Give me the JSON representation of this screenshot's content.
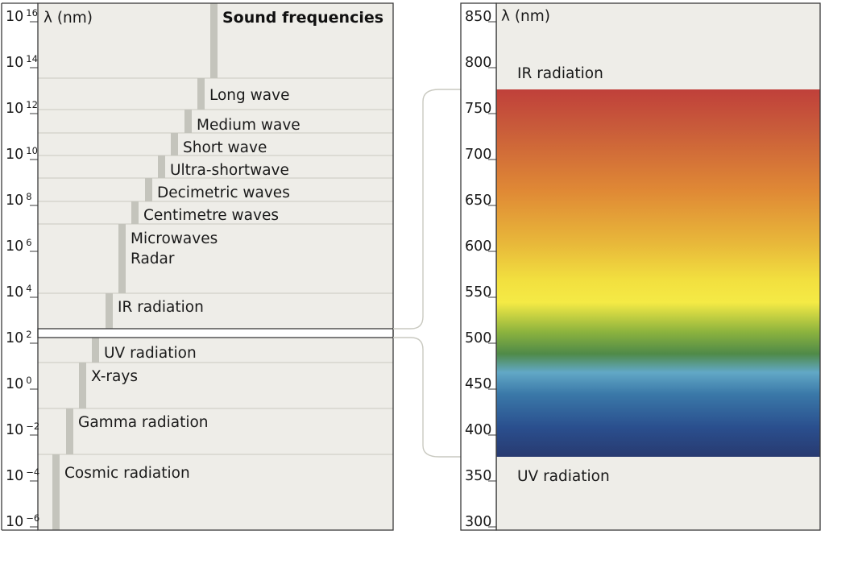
{
  "left_panel": {
    "unit_label": "λ (nm)",
    "heading": "Sound frequencies",
    "ticks": [
      {
        "base": "10",
        "exp": "16"
      },
      {
        "base": "10",
        "exp": "14"
      },
      {
        "base": "10",
        "exp": "12"
      },
      {
        "base": "10",
        "exp": "10"
      },
      {
        "base": "10",
        "exp": "8"
      },
      {
        "base": "10",
        "exp": "6"
      },
      {
        "base": "10",
        "exp": "4"
      },
      {
        "base": "10",
        "exp": "2"
      },
      {
        "base": "10",
        "exp": "0"
      },
      {
        "base": "10",
        "exp": "−2"
      },
      {
        "base": "10",
        "exp": "−4"
      },
      {
        "base": "10",
        "exp": "−6"
      }
    ],
    "bands": [
      {
        "lines": [
          "Long wave"
        ]
      },
      {
        "lines": [
          "Medium wave"
        ]
      },
      {
        "lines": [
          "Short wave"
        ]
      },
      {
        "lines": [
          "Ultra-shortwave"
        ]
      },
      {
        "lines": [
          "Decimetric waves"
        ]
      },
      {
        "lines": [
          "Centimetre waves"
        ]
      },
      {
        "lines": [
          "Microwaves",
          "Radar"
        ]
      },
      {
        "lines": [
          "IR radiation"
        ]
      },
      {
        "lines": [
          "UV radiation"
        ]
      },
      {
        "lines": [
          "X-rays"
        ]
      },
      {
        "lines": [
          "Gamma radiation"
        ]
      },
      {
        "lines": [
          "Cosmic radiation"
        ]
      }
    ]
  },
  "right_panel": {
    "unit_label": "λ (nm)",
    "ticks": [
      "850",
      "800",
      "750",
      "700",
      "650",
      "600",
      "550",
      "500",
      "450",
      "400",
      "350",
      "300"
    ],
    "top_label": "IR radiation",
    "bottom_label": "UV radiation",
    "spectrum_colors": [
      "#c0403a",
      "#c85a3a",
      "#e08a35",
      "#e8b83a",
      "#f2e03f",
      "#f5ea45",
      "#8cb33e",
      "#4f8a48",
      "#62a8c6",
      "#3a78a8",
      "#2a4f8e",
      "#283a70"
    ]
  },
  "colors": {
    "panel_bg": "#eeede8",
    "bar": "#c4c4bc",
    "rule": "#c9c9c0",
    "border": "#3a3a3a"
  }
}
